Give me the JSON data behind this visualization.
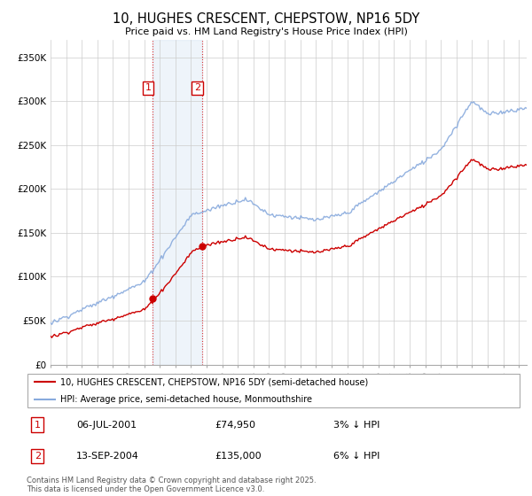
{
  "title": "10, HUGHES CRESCENT, CHEPSTOW, NP16 5DY",
  "subtitle": "Price paid vs. HM Land Registry's House Price Index (HPI)",
  "ylabel_ticks": [
    "£0",
    "£50K",
    "£100K",
    "£150K",
    "£200K",
    "£250K",
    "£300K",
    "£350K"
  ],
  "ytick_values": [
    0,
    50000,
    100000,
    150000,
    200000,
    250000,
    300000,
    350000
  ],
  "ylim": [
    0,
    370000
  ],
  "xlim_start": 1995.0,
  "xlim_end": 2025.5,
  "purchase1_year": 2001.54,
  "purchase1_price": 74950,
  "purchase2_year": 2004.71,
  "purchase2_price": 135000,
  "legend1_label": "10, HUGHES CRESCENT, CHEPSTOW, NP16 5DY (semi-detached house)",
  "legend2_label": "HPI: Average price, semi-detached house, Monmouthshire",
  "footer": "Contains HM Land Registry data © Crown copyright and database right 2025.\nThis data is licensed under the Open Government Licence v3.0.",
  "line_color_property": "#cc0000",
  "line_color_hpi": "#88aadd",
  "background_color": "#ffffff",
  "highlight_color": "#ddeeff",
  "label1_text": "1",
  "label2_text": "2",
  "table_row1": [
    "1",
    "06-JUL-2001",
    "£74,950",
    "3% ↓ HPI"
  ],
  "table_row2": [
    "2",
    "13-SEP-2004",
    "£135,000",
    "6% ↓ HPI"
  ]
}
